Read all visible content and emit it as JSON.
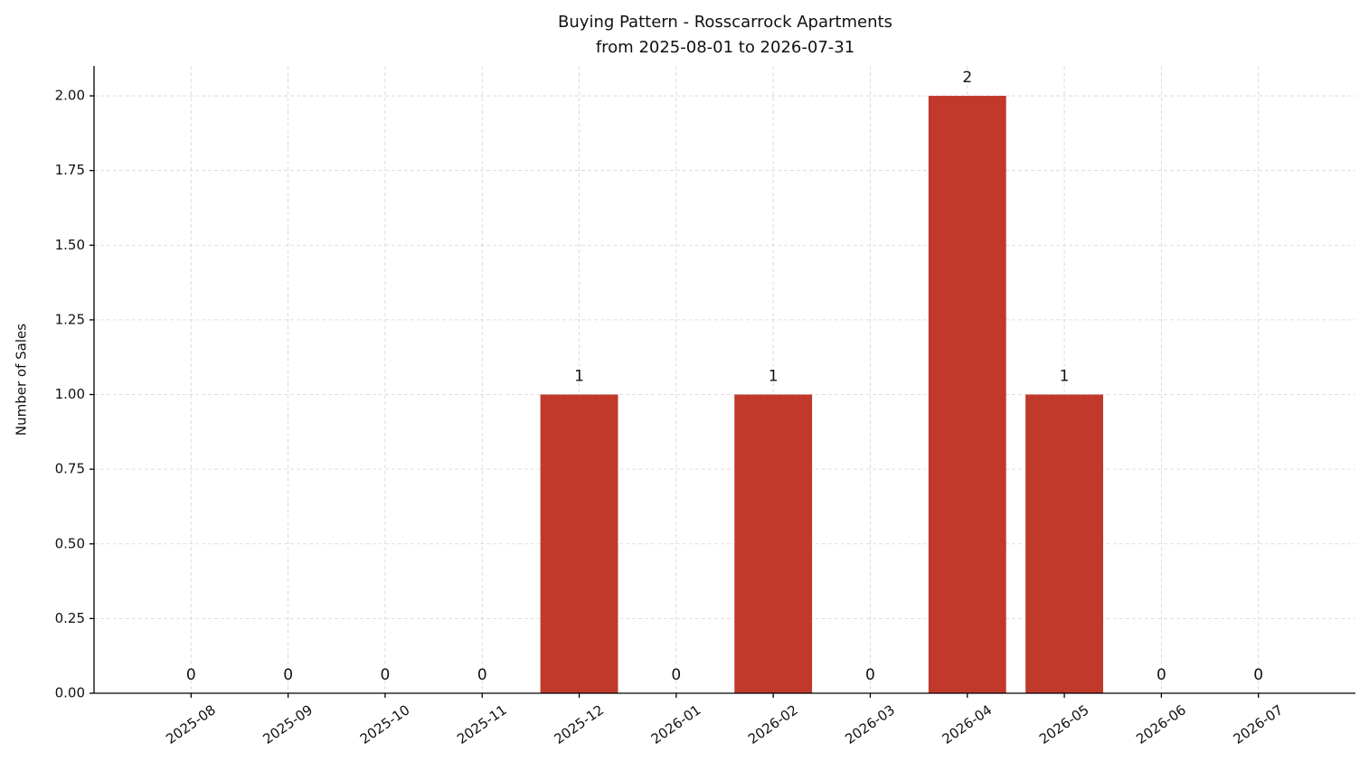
{
  "chart_data": {
    "type": "bar",
    "title": "Buying Pattern - Rosscarrock Apartments",
    "subtitle": "from 2025-08-01 to 2026-07-31",
    "y_label": "Number of Sales",
    "categories": [
      "2025-08",
      "2025-09",
      "2025-10",
      "2025-11",
      "2025-12",
      "2026-01",
      "2026-02",
      "2026-03",
      "2026-04",
      "2026-05",
      "2026-06",
      "2026-07"
    ],
    "values": [
      0,
      0,
      0,
      0,
      1,
      0,
      1,
      0,
      2,
      1,
      0,
      0
    ],
    "color": "#c0392b",
    "ylim": [
      0,
      2.1
    ],
    "yticks": [
      {
        "value": 0,
        "label": "0.00"
      },
      {
        "value": 0.25,
        "label": "0.25"
      },
      {
        "value": 0.5,
        "label": "0.50"
      },
      {
        "value": 0.75,
        "label": "0.75"
      },
      {
        "value": 1,
        "label": "1.00"
      },
      {
        "value": 1.25,
        "label": "1.25"
      },
      {
        "value": 1.5,
        "label": "1.50"
      },
      {
        "value": 1.75,
        "label": "1.75"
      },
      {
        "value": 2,
        "label": "2.00"
      }
    ],
    "grid": true
  }
}
